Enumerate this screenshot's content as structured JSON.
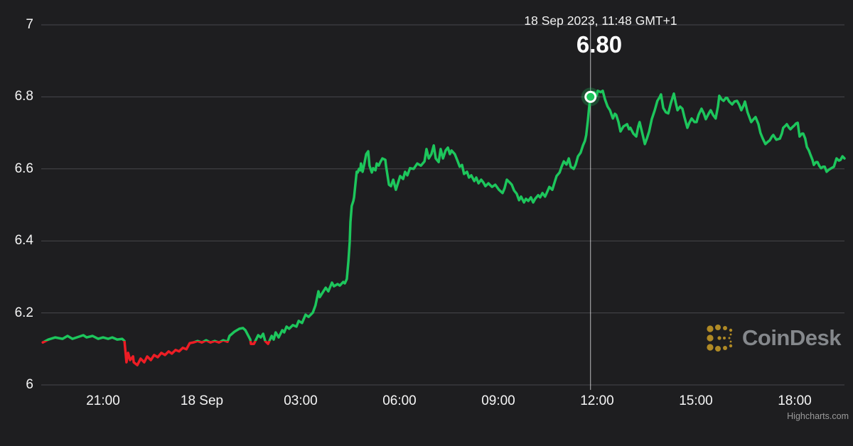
{
  "tooltip": {
    "date": "18 Sep 2023, 11:48 GMT+1",
    "value": "6.80"
  },
  "watermark": {
    "brand": "CoinDesk"
  },
  "credits": {
    "label": "Highcharts.com"
  },
  "colors": {
    "background": "#1e1e20",
    "grid": "#47474b",
    "up": "#1dc65c",
    "down": "#ed1d25",
    "axis_label": "#f5f5f5",
    "crosshair": "rgba(255,255,255,0.7)",
    "marker_glow": "rgba(29,198,92,0.28)",
    "watermark_icon": "#bd9426",
    "watermark_text": "#8e9296",
    "credit_text": "#9b9b9b"
  },
  "chart_data": {
    "type": "line",
    "title": "",
    "xlabel": "",
    "ylabel": "",
    "legend": "none",
    "grid": "horizontal only",
    "x_unit": "hours since 18 Sep 2023 00:00 GMT+1",
    "x_range": [
      -4.9,
      19.6
    ],
    "y_range": [
      6,
      7
    ],
    "threshold": 6.122,
    "y_ticks": [
      {
        "v": 7,
        "label": "7"
      },
      {
        "v": 6.8,
        "label": "6.8"
      },
      {
        "v": 6.6,
        "label": "6.6"
      },
      {
        "v": 6.4,
        "label": "6.4"
      },
      {
        "v": 6.2,
        "label": "6.2"
      },
      {
        "v": 6,
        "label": "6"
      }
    ],
    "x_ticks": [
      {
        "h": -3,
        "label": "21:00"
      },
      {
        "h": 0,
        "label": "18 Sep"
      },
      {
        "h": 3,
        "label": "03:00"
      },
      {
        "h": 6,
        "label": "06:00"
      },
      {
        "h": 9,
        "label": "09:00"
      },
      {
        "h": 12,
        "label": "12:00"
      },
      {
        "h": 15,
        "label": "15:00"
      },
      {
        "h": 18,
        "label": "18:00"
      }
    ],
    "selected_point": {
      "h": 11.8,
      "value": 6.8,
      "time_label": "18 Sep 2023, 11:48 GMT+1",
      "display_value": "6.80"
    },
    "points": [
      [
        -4.83,
        6.118
      ],
      [
        -4.66,
        6.126
      ],
      [
        -4.45,
        6.132
      ],
      [
        -4.23,
        6.128
      ],
      [
        -4.08,
        6.136
      ],
      [
        -3.93,
        6.128
      ],
      [
        -3.8,
        6.132
      ],
      [
        -3.6,
        6.138
      ],
      [
        -3.5,
        6.132
      ],
      [
        -3.32,
        6.136
      ],
      [
        -3.15,
        6.128
      ],
      [
        -3.0,
        6.132
      ],
      [
        -2.85,
        6.128
      ],
      [
        -2.72,
        6.132
      ],
      [
        -2.57,
        6.126
      ],
      [
        -2.42,
        6.128
      ],
      [
        -2.35,
        6.122
      ],
      [
        -2.29,
        6.063
      ],
      [
        -2.24,
        6.089
      ],
      [
        -2.18,
        6.069
      ],
      [
        -2.09,
        6.079
      ],
      [
        -2.07,
        6.063
      ],
      [
        -1.96,
        6.055
      ],
      [
        -1.86,
        6.073
      ],
      [
        -1.75,
        6.063
      ],
      [
        -1.66,
        6.079
      ],
      [
        -1.55,
        6.069
      ],
      [
        -1.45,
        6.083
      ],
      [
        -1.34,
        6.077
      ],
      [
        -1.23,
        6.089
      ],
      [
        -1.12,
        6.083
      ],
      [
        -1.01,
        6.093
      ],
      [
        -0.91,
        6.087
      ],
      [
        -0.8,
        6.097
      ],
      [
        -0.69,
        6.093
      ],
      [
        -0.58,
        6.103
      ],
      [
        -0.47,
        6.099
      ],
      [
        -0.37,
        6.116
      ],
      [
        -0.26,
        6.118
      ],
      [
        -0.13,
        6.122
      ],
      [
        0.0,
        6.118
      ],
      [
        0.13,
        6.124
      ],
      [
        0.26,
        6.118
      ],
      [
        0.39,
        6.122
      ],
      [
        0.52,
        6.118
      ],
      [
        0.65,
        6.124
      ],
      [
        0.78,
        6.12
      ],
      [
        0.84,
        6.136
      ],
      [
        0.99,
        6.148
      ],
      [
        1.14,
        6.156
      ],
      [
        1.25,
        6.158
      ],
      [
        1.32,
        6.152
      ],
      [
        1.47,
        6.126
      ],
      [
        1.49,
        6.114
      ],
      [
        1.58,
        6.114
      ],
      [
        1.71,
        6.138
      ],
      [
        1.79,
        6.132
      ],
      [
        1.86,
        6.142
      ],
      [
        1.92,
        6.122
      ],
      [
        2.01,
        6.114
      ],
      [
        2.12,
        6.136
      ],
      [
        2.18,
        6.126
      ],
      [
        2.24,
        6.146
      ],
      [
        2.33,
        6.132
      ],
      [
        2.44,
        6.152
      ],
      [
        2.5,
        6.146
      ],
      [
        2.57,
        6.162
      ],
      [
        2.65,
        6.156
      ],
      [
        2.76,
        6.166
      ],
      [
        2.87,
        6.162
      ],
      [
        2.94,
        6.178
      ],
      [
        3.04,
        6.172
      ],
      [
        3.15,
        6.195
      ],
      [
        3.24,
        6.189
      ],
      [
        3.37,
        6.201
      ],
      [
        3.45,
        6.221
      ],
      [
        3.54,
        6.26
      ],
      [
        3.58,
        6.244
      ],
      [
        3.65,
        6.254
      ],
      [
        3.76,
        6.27
      ],
      [
        3.84,
        6.26
      ],
      [
        3.95,
        6.284
      ],
      [
        4.01,
        6.274
      ],
      [
        4.12,
        6.28
      ],
      [
        4.19,
        6.276
      ],
      [
        4.29,
        6.286
      ],
      [
        4.34,
        6.282
      ],
      [
        4.4,
        6.294
      ],
      [
        4.45,
        6.345
      ],
      [
        4.49,
        6.398
      ],
      [
        4.51,
        6.452
      ],
      [
        4.55,
        6.497
      ],
      [
        4.6,
        6.511
      ],
      [
        4.62,
        6.521
      ],
      [
        4.66,
        6.556
      ],
      [
        4.7,
        6.592
      ],
      [
        4.73,
        6.59
      ],
      [
        4.77,
        6.6
      ],
      [
        4.81,
        6.596
      ],
      [
        4.83,
        6.615
      ],
      [
        4.88,
        6.592
      ],
      [
        4.92,
        6.609
      ],
      [
        4.99,
        6.641
      ],
      [
        5.05,
        6.649
      ],
      [
        5.09,
        6.609
      ],
      [
        5.16,
        6.59
      ],
      [
        5.2,
        6.602
      ],
      [
        5.27,
        6.596
      ],
      [
        5.31,
        6.615
      ],
      [
        5.37,
        6.609
      ],
      [
        5.42,
        6.619
      ],
      [
        5.48,
        6.629
      ],
      [
        5.57,
        6.625
      ],
      [
        5.59,
        6.609
      ],
      [
        5.68,
        6.556
      ],
      [
        5.74,
        6.552
      ],
      [
        5.81,
        6.57
      ],
      [
        5.89,
        6.542
      ],
      [
        5.96,
        6.562
      ],
      [
        6.02,
        6.58
      ],
      [
        6.11,
        6.572
      ],
      [
        6.17,
        6.592
      ],
      [
        6.24,
        6.582
      ],
      [
        6.32,
        6.602
      ],
      [
        6.43,
        6.6
      ],
      [
        6.54,
        6.615
      ],
      [
        6.65,
        6.609
      ],
      [
        6.76,
        6.621
      ],
      [
        6.82,
        6.655
      ],
      [
        6.89,
        6.629
      ],
      [
        6.97,
        6.641
      ],
      [
        7.04,
        6.665
      ],
      [
        7.1,
        6.629
      ],
      [
        7.19,
        6.619
      ],
      [
        7.25,
        6.655
      ],
      [
        7.32,
        6.629
      ],
      [
        7.4,
        6.651
      ],
      [
        7.47,
        6.659
      ],
      [
        7.53,
        6.641
      ],
      [
        7.58,
        6.651
      ],
      [
        7.64,
        6.645
      ],
      [
        7.68,
        6.641
      ],
      [
        7.75,
        6.625
      ],
      [
        7.83,
        6.606
      ],
      [
        7.9,
        6.611
      ],
      [
        7.96,
        6.586
      ],
      [
        8.05,
        6.592
      ],
      [
        8.11,
        6.576
      ],
      [
        8.18,
        6.582
      ],
      [
        8.27,
        6.566
      ],
      [
        8.33,
        6.576
      ],
      [
        8.4,
        6.56
      ],
      [
        8.48,
        6.57
      ],
      [
        8.55,
        6.562
      ],
      [
        8.61,
        6.552
      ],
      [
        8.7,
        6.56
      ],
      [
        8.81,
        6.55
      ],
      [
        8.91,
        6.556
      ],
      [
        9.02,
        6.542
      ],
      [
        9.13,
        6.533
      ],
      [
        9.19,
        6.546
      ],
      [
        9.26,
        6.57
      ],
      [
        9.35,
        6.562
      ],
      [
        9.41,
        6.556
      ],
      [
        9.48,
        6.54
      ],
      [
        9.56,
        6.531
      ],
      [
        9.63,
        6.513
      ],
      [
        9.69,
        6.523
      ],
      [
        9.78,
        6.507
      ],
      [
        9.84,
        6.517
      ],
      [
        9.91,
        6.511
      ],
      [
        9.99,
        6.521
      ],
      [
        10.06,
        6.507
      ],
      [
        10.12,
        6.517
      ],
      [
        10.21,
        6.527
      ],
      [
        10.27,
        6.521
      ],
      [
        10.34,
        6.533
      ],
      [
        10.42,
        6.523
      ],
      [
        10.49,
        6.537
      ],
      [
        10.55,
        6.55
      ],
      [
        10.64,
        6.542
      ],
      [
        10.7,
        6.56
      ],
      [
        10.77,
        6.58
      ],
      [
        10.86,
        6.59
      ],
      [
        10.92,
        6.606
      ],
      [
        10.99,
        6.621
      ],
      [
        11.07,
        6.612
      ],
      [
        11.14,
        6.629
      ],
      [
        11.2,
        6.606
      ],
      [
        11.29,
        6.6
      ],
      [
        11.35,
        6.612
      ],
      [
        11.42,
        6.635
      ],
      [
        11.5,
        6.645
      ],
      [
        11.57,
        6.665
      ],
      [
        11.63,
        6.678
      ],
      [
        11.67,
        6.694
      ],
      [
        11.72,
        6.734
      ],
      [
        11.76,
        6.773
      ],
      [
        11.8,
        6.799
      ],
      [
        11.85,
        6.809
      ],
      [
        11.91,
        6.813
      ],
      [
        11.98,
        6.803
      ],
      [
        12.02,
        6.817
      ],
      [
        12.11,
        6.813
      ],
      [
        12.17,
        6.817
      ],
      [
        12.24,
        6.793
      ],
      [
        12.32,
        6.773
      ],
      [
        12.39,
        6.763
      ],
      [
        12.48,
        6.74
      ],
      [
        12.54,
        6.753
      ],
      [
        12.58,
        6.75
      ],
      [
        12.65,
        6.73
      ],
      [
        12.71,
        6.704
      ],
      [
        12.8,
        6.718
      ],
      [
        12.91,
        6.724
      ],
      [
        12.97,
        6.71
      ],
      [
        13.01,
        6.714
      ],
      [
        13.1,
        6.698
      ],
      [
        13.19,
        6.69
      ],
      [
        13.25,
        6.718
      ],
      [
        13.29,
        6.73
      ],
      [
        13.36,
        6.704
      ],
      [
        13.45,
        6.669
      ],
      [
        13.51,
        6.684
      ],
      [
        13.58,
        6.704
      ],
      [
        13.66,
        6.738
      ],
      [
        13.75,
        6.763
      ],
      [
        13.83,
        6.789
      ],
      [
        13.9,
        6.799
      ],
      [
        13.94,
        6.807
      ],
      [
        14.01,
        6.769
      ],
      [
        14.09,
        6.757
      ],
      [
        14.16,
        6.754
      ],
      [
        14.24,
        6.783
      ],
      [
        14.33,
        6.809
      ],
      [
        14.39,
        6.783
      ],
      [
        14.44,
        6.763
      ],
      [
        14.52,
        6.773
      ],
      [
        14.59,
        6.767
      ],
      [
        14.65,
        6.744
      ],
      [
        14.74,
        6.714
      ],
      [
        14.8,
        6.728
      ],
      [
        14.87,
        6.74
      ],
      [
        14.96,
        6.73
      ],
      [
        15.02,
        6.73
      ],
      [
        15.08,
        6.75
      ],
      [
        15.17,
        6.767
      ],
      [
        15.24,
        6.754
      ],
      [
        15.3,
        6.738
      ],
      [
        15.39,
        6.754
      ],
      [
        15.45,
        6.763
      ],
      [
        15.52,
        6.75
      ],
      [
        15.6,
        6.74
      ],
      [
        15.67,
        6.773
      ],
      [
        15.71,
        6.803
      ],
      [
        15.78,
        6.793
      ],
      [
        15.84,
        6.789
      ],
      [
        15.91,
        6.797
      ],
      [
        15.95,
        6.797
      ],
      [
        16.01,
        6.787
      ],
      [
        16.1,
        6.779
      ],
      [
        16.17,
        6.787
      ],
      [
        16.25,
        6.789
      ],
      [
        16.32,
        6.777
      ],
      [
        16.38,
        6.763
      ],
      [
        16.45,
        6.777
      ],
      [
        16.49,
        6.787
      ],
      [
        16.57,
        6.757
      ],
      [
        16.68,
        6.73
      ],
      [
        16.75,
        6.738
      ],
      [
        16.81,
        6.744
      ],
      [
        16.9,
        6.724
      ],
      [
        16.96,
        6.7
      ],
      [
        17.03,
        6.684
      ],
      [
        17.11,
        6.669
      ],
      [
        17.18,
        6.675
      ],
      [
        17.24,
        6.679
      ],
      [
        17.31,
        6.69
      ],
      [
        17.35,
        6.694
      ],
      [
        17.44,
        6.681
      ],
      [
        17.55,
        6.684
      ],
      [
        17.61,
        6.698
      ],
      [
        17.65,
        6.714
      ],
      [
        17.72,
        6.72
      ],
      [
        17.76,
        6.724
      ],
      [
        17.83,
        6.714
      ],
      [
        17.87,
        6.71
      ],
      [
        17.93,
        6.716
      ],
      [
        17.98,
        6.72
      ],
      [
        18.04,
        6.726
      ],
      [
        18.09,
        6.728
      ],
      [
        18.15,
        6.69
      ],
      [
        18.22,
        6.698
      ],
      [
        18.26,
        6.698
      ],
      [
        18.32,
        6.684
      ],
      [
        18.37,
        6.661
      ],
      [
        18.43,
        6.651
      ],
      [
        18.47,
        6.641
      ],
      [
        18.54,
        6.625
      ],
      [
        18.58,
        6.611
      ],
      [
        18.65,
        6.619
      ],
      [
        18.69,
        6.619
      ],
      [
        18.75,
        6.608
      ],
      [
        18.8,
        6.602
      ],
      [
        18.86,
        6.606
      ],
      [
        18.91,
        6.606
      ],
      [
        18.97,
        6.592
      ],
      [
        19.04,
        6.598
      ],
      [
        19.08,
        6.6
      ],
      [
        19.15,
        6.604
      ],
      [
        19.19,
        6.606
      ],
      [
        19.27,
        6.629
      ],
      [
        19.34,
        6.623
      ],
      [
        19.39,
        6.625
      ],
      [
        19.45,
        6.635
      ],
      [
        19.51,
        6.629
      ]
    ]
  }
}
